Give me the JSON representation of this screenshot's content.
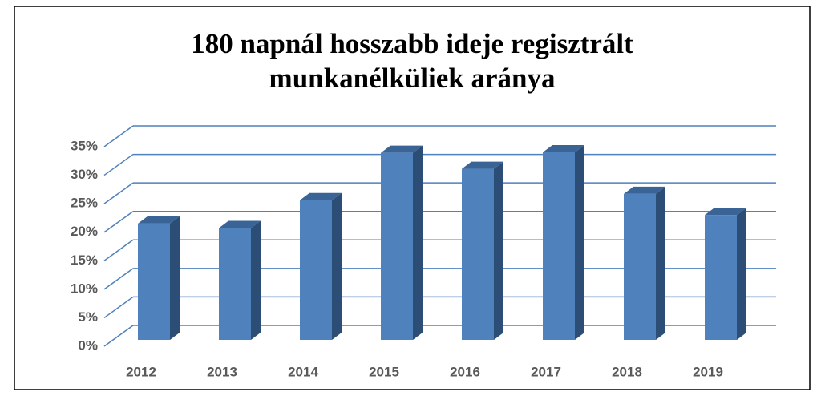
{
  "chart_data": {
    "type": "bar3d",
    "title": "180 napnál hosszabb ideje regisztrált munkanélküliek aránya",
    "title_lines": [
      "180 napnál hosszabb ideje regisztrált",
      "munkanélküliek aránya"
    ],
    "categories": [
      "2012",
      "2013",
      "2014",
      "2015",
      "2016",
      "2017",
      "2018",
      "2019"
    ],
    "values": [
      20.4,
      19.6,
      24.5,
      32.8,
      30.0,
      32.9,
      25.6,
      21.9
    ],
    "color": "#4f81bd",
    "ylim": [
      0,
      35
    ],
    "yticks": [
      {
        "value": 0,
        "label": "0%"
      },
      {
        "value": 5,
        "label": "5%"
      },
      {
        "value": 10,
        "label": "10%"
      },
      {
        "value": 15,
        "label": "15%"
      },
      {
        "value": 20,
        "label": "20%"
      },
      {
        "value": 25,
        "label": "25%"
      },
      {
        "value": 30,
        "label": "30%"
      },
      {
        "value": 35,
        "label": "35%"
      }
    ],
    "grid": true
  }
}
